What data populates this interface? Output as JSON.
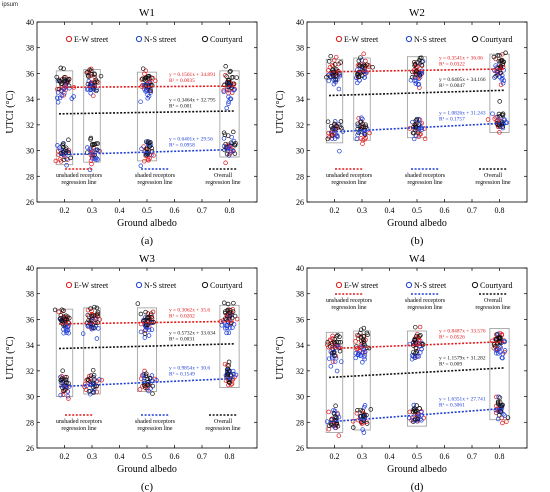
{
  "watermark": "ipsum",
  "chart_data": [
    {
      "type": "scatter",
      "title": "W1",
      "panel_label": "(a)",
      "xlabel": "Ground albedo",
      "ylabel": "UTCI (°C)",
      "xlim": [
        0.1,
        0.9
      ],
      "ylim": [
        26,
        40
      ],
      "xticks": [
        "0.2",
        "0.3",
        "0.4",
        "0.5",
        "0.6",
        "0.7",
        "0.8"
      ],
      "yticks": [
        "26",
        "28",
        "30",
        "32",
        "34",
        "36",
        "38",
        "40"
      ],
      "legend": [
        "E-W street",
        "N-S street",
        "Courtyard"
      ],
      "regression_legend": [
        "unshaded receptors regression line",
        "shaded receptors regression line",
        "Overall regression line"
      ],
      "x": [
        0.2,
        0.3,
        0.5,
        0.8
      ],
      "series": [
        {
          "name": "E-W street",
          "color": "#e31a1c",
          "unshaded_mean": [
            35.2,
            35.4,
            35.2,
            35.3
          ],
          "shaded_mean": [
            29.6,
            29.8,
            29.9,
            30.3
          ]
        },
        {
          "name": "N-S street",
          "color": "#1f3fd6",
          "unshaded_mean": [
            34.6,
            34.8,
            34.5,
            34.7
          ],
          "shaded_mean": [
            29.8,
            29.9,
            30.1,
            30.2
          ]
        },
        {
          "name": "Courtyard",
          "color": "#111111",
          "unshaded_mean": [
            35.5,
            35.6,
            35.4,
            35.5
          ],
          "shaded_mean": [
            30.1,
            30.2,
            30.2,
            30.6
          ]
        }
      ],
      "regressions": [
        {
          "role": "unshaded",
          "color": "#e31a1c",
          "slope": 0.1561,
          "intercept": 34.891,
          "equation": "y = 0.1561x + 34.891",
          "r2": "R² = 0.0035"
        },
        {
          "role": "overall",
          "color": "#111111",
          "slope": 0.3464,
          "intercept": 32.795,
          "equation": "y = 0.3464x + 32.795",
          "r2": "R² = 0.001"
        },
        {
          "role": "shaded",
          "color": "#1f3fd6",
          "slope": 0.6401,
          "intercept": 29.56,
          "equation": "y = 0.6401x + 29.56",
          "r2": "R² = 0.0958"
        }
      ]
    },
    {
      "type": "scatter",
      "title": "W2",
      "panel_label": "(b)",
      "xlabel": "Ground albedo",
      "ylabel": "UTCI (°C)",
      "xlim": [
        0.1,
        0.9
      ],
      "ylim": [
        26,
        40
      ],
      "xticks": [
        "0.2",
        "0.3",
        "0.4",
        "0.5",
        "0.6",
        "0.7",
        "0.8"
      ],
      "yticks": [
        "26",
        "28",
        "30",
        "32",
        "34",
        "36",
        "38",
        "40"
      ],
      "legend": [
        "E-W street",
        "N-S street",
        "Courtyard"
      ],
      "regression_legend": [
        "unshaded receptors regression line",
        "shaded receptors regression line",
        "Overall regression line"
      ],
      "x": [
        0.2,
        0.3,
        0.5,
        0.8
      ],
      "series": [
        {
          "name": "E-W street",
          "color": "#e31a1c",
          "unshaded_mean": [
            36.2,
            36.4,
            36.4,
            36.5
          ],
          "shaded_mean": [
            31.3,
            31.5,
            31.7,
            32.1
          ]
        },
        {
          "name": "N-S street",
          "color": "#1f3fd6",
          "unshaded_mean": [
            35.8,
            35.9,
            35.8,
            36.0
          ],
          "shaded_mean": [
            31.4,
            31.6,
            31.9,
            32.3
          ]
        },
        {
          "name": "Courtyard",
          "color": "#111111",
          "unshaded_mean": [
            36.4,
            36.5,
            36.6,
            36.8
          ],
          "shaded_mean": [
            31.8,
            31.9,
            32.0,
            32.5
          ]
        }
      ],
      "regressions": [
        {
          "role": "unshaded",
          "color": "#e31a1c",
          "slope": 0.3541,
          "intercept": 36.06,
          "equation": "y = 0.3541x + 36.06",
          "r2": "R² = 0.0322"
        },
        {
          "role": "overall",
          "color": "#111111",
          "slope": 0.6405,
          "intercept": 34.166,
          "equation": "y = 0.6405x + 34.166",
          "r2": "R² = 0.0047"
        },
        {
          "role": "shaded",
          "color": "#1f3fd6",
          "slope": 1.0826,
          "intercept": 31.243,
          "equation": "y = 1.0826x + 31.243",
          "r2": "R² = 0.1757"
        }
      ]
    },
    {
      "type": "scatter",
      "title": "W3",
      "panel_label": "(c)",
      "xlabel": "Ground albedo",
      "ylabel": "UTCI (°C)",
      "xlim": [
        0.1,
        0.9
      ],
      "ylim": [
        26,
        40
      ],
      "xticks": [
        "0.2",
        "0.3",
        "0.4",
        "0.5",
        "0.6",
        "0.7",
        "0.8"
      ],
      "yticks": [
        "26",
        "28",
        "30",
        "32",
        "34",
        "36",
        "38",
        "40"
      ],
      "legend": [
        "E-W street",
        "N-S street",
        "Courtyard"
      ],
      "regression_legend": [
        "unshaded receptors regression line",
        "shaded receptors regression line",
        "Overall regression line"
      ],
      "x": [
        0.2,
        0.3,
        0.5,
        0.8
      ],
      "series": [
        {
          "name": "E-W street",
          "color": "#e31a1c",
          "unshaded_mean": [
            35.9,
            36.0,
            36.0,
            36.2
          ],
          "shaded_mean": [
            30.7,
            30.9,
            31.1,
            31.4
          ]
        },
        {
          "name": "N-S street",
          "color": "#1f3fd6",
          "unshaded_mean": [
            35.3,
            35.4,
            35.4,
            35.6
          ],
          "shaded_mean": [
            30.8,
            31.0,
            31.2,
            31.6
          ]
        },
        {
          "name": "Courtyard",
          "color": "#111111",
          "unshaded_mean": [
            36.1,
            36.2,
            36.2,
            36.4
          ],
          "shaded_mean": [
            31.1,
            31.2,
            31.3,
            31.8
          ]
        }
      ],
      "regressions": [
        {
          "role": "unshaded",
          "color": "#e31a1c",
          "slope": 0.3062,
          "intercept": 35.6,
          "equation": "y = 0.3062x + 35.6",
          "r2": "R² = 0.0202"
        },
        {
          "role": "overall",
          "color": "#111111",
          "slope": 0.5732,
          "intercept": 33.634,
          "equation": "y = 0.5732x + 33.634",
          "r2": "R² = 0.0031"
        },
        {
          "role": "shaded",
          "color": "#1f3fd6",
          "slope": 0.9854,
          "intercept": 30.6,
          "equation": "y = 0.9854x + 30.6",
          "r2": "R² = 0.1549"
        }
      ]
    },
    {
      "type": "scatter",
      "title": "W4",
      "panel_label": "(d)",
      "xlabel": "Ground albedo",
      "ylabel": "UTCI (°C)",
      "xlim": [
        0.1,
        0.9
      ],
      "ylim": [
        26,
        40
      ],
      "xticks": [
        "0.2",
        "0.3",
        "0.4",
        "0.5",
        "0.6",
        "0.7",
        "0.8"
      ],
      "yticks": [
        "26",
        "28",
        "30",
        "32",
        "34",
        "36",
        "38",
        "40"
      ],
      "legend": [
        "E-W street",
        "N-S street",
        "Courtyard"
      ],
      "regression_legend": [
        "unshaded receptors regression line",
        "shaded receptors regression line",
        "Overall regression line"
      ],
      "x": [
        0.2,
        0.3,
        0.5,
        0.8
      ],
      "series": [
        {
          "name": "E-W street",
          "color": "#e31a1c",
          "unshaded_mean": [
            33.9,
            34.0,
            34.0,
            34.2
          ],
          "shaded_mean": [
            27.9,
            28.1,
            28.4,
            28.9
          ]
        },
        {
          "name": "N-S street",
          "color": "#1f3fd6",
          "unshaded_mean": [
            33.3,
            33.4,
            33.5,
            33.8
          ],
          "shaded_mean": [
            28.1,
            28.3,
            28.6,
            29.1
          ]
        },
        {
          "name": "Courtyard",
          "color": "#111111",
          "unshaded_mean": [
            34.3,
            34.4,
            34.4,
            34.6
          ],
          "shaded_mean": [
            28.3,
            28.5,
            28.7,
            29.3
          ]
        }
      ],
      "regressions": [
        {
          "role": "unshaded",
          "color": "#e31a1c",
          "slope": 0.8487,
          "intercept": 33.576,
          "equation": "y = 0.8487x + 33.576",
          "r2": "R² = 0.0526"
        },
        {
          "role": "overall",
          "color": "#111111",
          "slope": 1.1579,
          "intercept": 31.282,
          "equation": "y = 1.1579x + 31.282",
          "r2": "R² = 0.009"
        },
        {
          "role": "shaded",
          "color": "#1f3fd6",
          "slope": 1.6351,
          "intercept": 27.741,
          "equation": "y = 1.6351x + 27.741",
          "r2": "R² = 0.3061"
        }
      ]
    }
  ]
}
